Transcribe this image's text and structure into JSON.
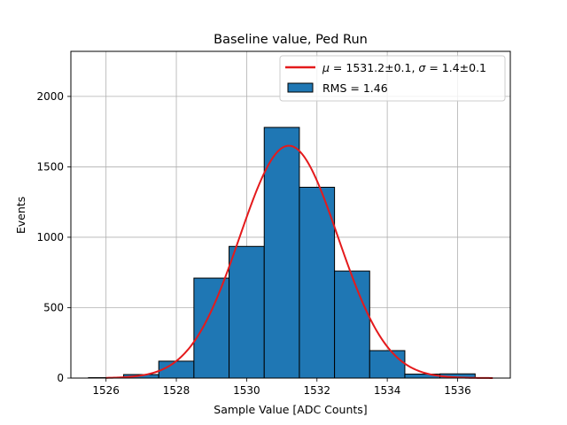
{
  "chart_data": {
    "type": "bar",
    "title": "Baseline value, Ped Run",
    "xlabel": "Sample Value [ADC Counts]",
    "ylabel": "Events",
    "xlim": [
      1525,
      1537.5
    ],
    "ylim": [
      0,
      2320
    ],
    "grid": true,
    "legend_position": "top-right",
    "xticks": [
      1526,
      1528,
      1530,
      1532,
      1534,
      1536
    ],
    "yticks": [
      0,
      500,
      1000,
      1500,
      2000
    ],
    "histogram": {
      "name": "RMS = 1.46",
      "bin_edges": [
        1525.5,
        1526.5,
        1527.5,
        1528.5,
        1529.5,
        1530.5,
        1531.5,
        1532.5,
        1533.5,
        1534.5,
        1535.5,
        1536.5
      ],
      "values": [
        3,
        25,
        120,
        710,
        935,
        1780,
        1355,
        760,
        195,
        28,
        30
      ],
      "color": "#1f77b4",
      "edgecolor": "#000000"
    },
    "fit": {
      "name": "μ = 1531.2±0.1, σ = 1.4±0.1",
      "label_mu": "μ",
      "label_mu_value": " = 1531.2±0.1, ",
      "label_sigma": "σ",
      "label_sigma_value": " = 1.4±0.1",
      "mu": 1531.2,
      "sigma": 1.4,
      "amplitude": 1650,
      "x_range": [
        1526,
        1537
      ],
      "color": "#e41a1c"
    }
  }
}
